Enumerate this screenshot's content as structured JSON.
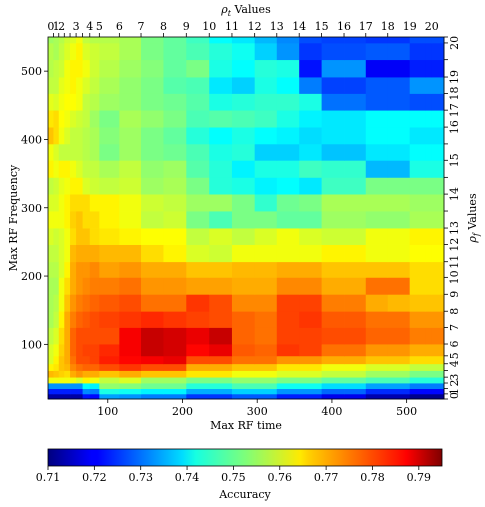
{
  "chart_data": {
    "type": "heatmap",
    "xlabel": "Max RF time",
    "ylabel": "Max RF Frequency",
    "top_label": "ρ_t Values",
    "right_label": "ρ_f Values",
    "colorbar_label": "Accuracy",
    "x_ticks": [
      100,
      200,
      300,
      400,
      500
    ],
    "y_ticks": [
      100,
      200,
      300,
      400,
      500
    ],
    "top_ticks": [
      "0",
      "1",
      "2",
      "3",
      "4",
      "5",
      "6",
      "7",
      "8",
      "9",
      "10",
      "11",
      "12",
      "13",
      "14",
      "15",
      "16",
      "17",
      "18",
      "19",
      "20"
    ],
    "right_ticks": [
      "0",
      "1",
      "2",
      "3",
      "4",
      "5",
      "6",
      "7",
      "8",
      "9",
      "10",
      "11",
      "12",
      "13",
      "14",
      "15",
      "16",
      "17",
      "18",
      "19",
      "20"
    ],
    "colorbar_ticks": [
      "0.71",
      "0.72",
      "0.73",
      "0.74",
      "0.75",
      "0.76",
      "0.77",
      "0.78",
      "0.79"
    ],
    "colorbar_range": [
      0.71,
      0.795
    ],
    "x_range": [
      20,
      550
    ],
    "y_range": [
      20,
      550
    ],
    "x_edges": [
      20,
      27.3,
      34.4,
      41.8,
      49.5,
      57.6,
      66.3,
      75.9,
      88.7,
      115.5,
      144.5,
      174.5,
      205.1,
      235.8,
      266.2,
      296.6,
      326.2,
      356.2,
      386.2,
      416.2,
      445.3,
      474.7,
      504.1,
      525.2,
      533.6,
      550
    ],
    "y_edges": [
      20,
      27.5,
      35.2,
      43.4,
      52,
      61.7,
      71.6,
      83.2,
      100.5,
      124.7,
      148.5,
      173.3,
      198.1,
      221,
      246.1,
      270.3,
      295.2,
      320,
      344.5,
      369.5,
      393.5,
      418.1,
      442.9,
      467.3,
      491.4,
      516.8,
      541.3,
      550
    ],
    "values": [
      [
        0.713,
        0.713,
        0.713,
        0.713,
        0.713,
        0.713,
        0.722,
        0.721,
        0.734,
        0.733,
        0.731,
        0.731,
        0.725,
        0.725,
        0.728,
        0.728,
        0.723,
        0.723,
        0.719,
        0.719,
        0.714,
        0.714,
        0.711,
        0.711,
        0.711
      ],
      [
        0.723,
        0.723,
        0.723,
        0.723,
        0.723,
        0.723,
        0.732,
        0.731,
        0.744,
        0.743,
        0.741,
        0.741,
        0.735,
        0.735,
        0.738,
        0.738,
        0.733,
        0.733,
        0.729,
        0.729,
        0.724,
        0.724,
        0.721,
        0.721,
        0.721
      ],
      [
        0.733,
        0.733,
        0.733,
        0.733,
        0.733,
        0.733,
        0.742,
        0.741,
        0.754,
        0.753,
        0.751,
        0.751,
        0.745,
        0.745,
        0.748,
        0.748,
        0.743,
        0.743,
        0.739,
        0.739,
        0.734,
        0.734,
        0.731,
        0.731,
        0.731
      ],
      [
        0.762,
        0.762,
        0.762,
        0.762,
        0.762,
        0.76,
        0.764,
        0.762,
        0.758,
        0.76,
        0.755,
        0.755,
        0.752,
        0.752,
        0.754,
        0.754,
        0.752,
        0.752,
        0.75,
        0.75,
        0.748,
        0.748,
        0.745,
        0.745,
        0.745
      ],
      [
        0.769,
        0.768,
        0.767,
        0.766,
        0.77,
        0.772,
        0.77,
        0.77,
        0.768,
        0.77,
        0.768,
        0.768,
        0.765,
        0.765,
        0.762,
        0.762,
        0.76,
        0.76,
        0.758,
        0.758,
        0.755,
        0.755,
        0.752,
        0.752,
        0.752
      ],
      [
        0.764,
        0.765,
        0.768,
        0.769,
        0.773,
        0.775,
        0.776,
        0.776,
        0.778,
        0.78,
        0.778,
        0.778,
        0.77,
        0.77,
        0.768,
        0.768,
        0.765,
        0.765,
        0.762,
        0.762,
        0.76,
        0.76,
        0.758,
        0.758,
        0.758
      ],
      [
        0.76,
        0.764,
        0.768,
        0.77,
        0.775,
        0.778,
        0.778,
        0.779,
        0.782,
        0.784,
        0.785,
        0.786,
        0.778,
        0.778,
        0.775,
        0.775,
        0.772,
        0.772,
        0.77,
        0.77,
        0.768,
        0.768,
        0.766,
        0.766,
        0.766
      ],
      [
        0.76,
        0.762,
        0.767,
        0.77,
        0.776,
        0.778,
        0.779,
        0.779,
        0.781,
        0.785,
        0.789,
        0.788,
        0.784,
        0.786,
        0.777,
        0.776,
        0.78,
        0.779,
        0.775,
        0.775,
        0.772,
        0.772,
        0.77,
        0.77,
        0.77
      ],
      [
        0.758,
        0.76,
        0.766,
        0.77,
        0.776,
        0.778,
        0.778,
        0.778,
        0.778,
        0.785,
        0.789,
        0.788,
        0.786,
        0.789,
        0.776,
        0.775,
        0.779,
        0.779,
        0.778,
        0.778,
        0.776,
        0.776,
        0.774,
        0.774,
        0.774
      ],
      [
        0.756,
        0.758,
        0.764,
        0.77,
        0.774,
        0.776,
        0.777,
        0.778,
        0.779,
        0.78,
        0.781,
        0.78,
        0.779,
        0.778,
        0.776,
        0.775,
        0.779,
        0.78,
        0.777,
        0.777,
        0.775,
        0.775,
        0.772,
        0.772,
        0.772
      ],
      [
        0.756,
        0.757,
        0.762,
        0.768,
        0.772,
        0.774,
        0.775,
        0.776,
        0.777,
        0.778,
        0.775,
        0.775,
        0.78,
        0.778,
        0.773,
        0.773,
        0.779,
        0.779,
        0.774,
        0.774,
        0.77,
        0.769,
        0.768,
        0.768,
        0.768
      ],
      [
        0.756,
        0.756,
        0.762,
        0.766,
        0.77,
        0.772,
        0.773,
        0.774,
        0.774,
        0.775,
        0.772,
        0.772,
        0.771,
        0.771,
        0.77,
        0.77,
        0.773,
        0.773,
        0.77,
        0.77,
        0.775,
        0.775,
        0.766,
        0.766,
        0.766
      ],
      [
        0.757,
        0.757,
        0.76,
        0.764,
        0.77,
        0.772,
        0.772,
        0.773,
        0.771,
        0.772,
        0.77,
        0.77,
        0.768,
        0.768,
        0.769,
        0.769,
        0.77,
        0.77,
        0.768,
        0.768,
        0.768,
        0.768,
        0.766,
        0.766,
        0.766
      ],
      [
        0.758,
        0.758,
        0.76,
        0.762,
        0.769,
        0.77,
        0.77,
        0.77,
        0.769,
        0.769,
        0.766,
        0.764,
        0.76,
        0.759,
        0.762,
        0.762,
        0.762,
        0.762,
        0.764,
        0.764,
        0.762,
        0.762,
        0.763,
        0.763,
        0.763
      ],
      [
        0.76,
        0.759,
        0.76,
        0.762,
        0.766,
        0.768,
        0.768,
        0.766,
        0.765,
        0.764,
        0.763,
        0.763,
        0.758,
        0.76,
        0.758,
        0.76,
        0.762,
        0.76,
        0.759,
        0.759,
        0.762,
        0.762,
        0.764,
        0.764,
        0.764
      ],
      [
        0.762,
        0.762,
        0.762,
        0.764,
        0.767,
        0.768,
        0.766,
        0.766,
        0.764,
        0.762,
        0.758,
        0.759,
        0.752,
        0.748,
        0.752,
        0.752,
        0.75,
        0.75,
        0.755,
        0.755,
        0.754,
        0.754,
        0.756,
        0.756,
        0.756
      ],
      [
        0.76,
        0.76,
        0.762,
        0.764,
        0.766,
        0.766,
        0.766,
        0.764,
        0.764,
        0.762,
        0.759,
        0.758,
        0.755,
        0.755,
        0.752,
        0.746,
        0.751,
        0.752,
        0.756,
        0.756,
        0.756,
        0.756,
        0.755,
        0.755,
        0.755
      ],
      [
        0.758,
        0.759,
        0.761,
        0.762,
        0.764,
        0.764,
        0.76,
        0.759,
        0.758,
        0.759,
        0.755,
        0.756,
        0.752,
        0.745,
        0.744,
        0.741,
        0.742,
        0.74,
        0.747,
        0.747,
        0.752,
        0.752,
        0.752,
        0.752,
        0.752
      ],
      [
        0.764,
        0.762,
        0.764,
        0.764,
        0.762,
        0.76,
        0.758,
        0.758,
        0.756,
        0.758,
        0.754,
        0.755,
        0.749,
        0.745,
        0.741,
        0.744,
        0.744,
        0.747,
        0.746,
        0.746,
        0.736,
        0.736,
        0.744,
        0.744,
        0.744
      ],
      [
        0.762,
        0.76,
        0.758,
        0.758,
        0.758,
        0.758,
        0.757,
        0.756,
        0.752,
        0.755,
        0.752,
        0.751,
        0.748,
        0.744,
        0.745,
        0.738,
        0.738,
        0.74,
        0.737,
        0.737,
        0.74,
        0.74,
        0.742,
        0.742,
        0.742
      ],
      [
        0.768,
        0.766,
        0.762,
        0.76,
        0.758,
        0.758,
        0.757,
        0.756,
        0.753,
        0.755,
        0.752,
        0.75,
        0.745,
        0.742,
        0.744,
        0.742,
        0.741,
        0.739,
        0.74,
        0.74,
        0.742,
        0.742,
        0.74,
        0.74,
        0.74
      ],
      [
        0.765,
        0.766,
        0.763,
        0.762,
        0.76,
        0.759,
        0.758,
        0.755,
        0.752,
        0.756,
        0.754,
        0.752,
        0.748,
        0.749,
        0.748,
        0.747,
        0.744,
        0.741,
        0.74,
        0.74,
        0.742,
        0.742,
        0.742,
        0.742,
        0.742
      ],
      [
        0.761,
        0.76,
        0.762,
        0.763,
        0.763,
        0.762,
        0.758,
        0.757,
        0.755,
        0.754,
        0.752,
        0.751,
        0.749,
        0.744,
        0.745,
        0.746,
        0.746,
        0.744,
        0.73,
        0.73,
        0.728,
        0.728,
        0.727,
        0.727,
        0.727
      ],
      [
        0.758,
        0.758,
        0.761,
        0.762,
        0.764,
        0.762,
        0.76,
        0.758,
        0.756,
        0.754,
        0.752,
        0.749,
        0.748,
        0.74,
        0.738,
        0.744,
        0.742,
        0.731,
        0.726,
        0.726,
        0.728,
        0.728,
        0.733,
        0.733,
        0.733
      ],
      [
        0.757,
        0.758,
        0.759,
        0.762,
        0.764,
        0.764,
        0.762,
        0.759,
        0.757,
        0.755,
        0.753,
        0.75,
        0.752,
        0.744,
        0.742,
        0.745,
        0.744,
        0.722,
        0.733,
        0.733,
        0.72,
        0.72,
        0.723,
        0.723,
        0.723
      ],
      [
        0.757,
        0.756,
        0.758,
        0.76,
        0.762,
        0.764,
        0.76,
        0.759,
        0.758,
        0.756,
        0.752,
        0.75,
        0.748,
        0.745,
        0.743,
        0.738,
        0.733,
        0.725,
        0.727,
        0.727,
        0.728,
        0.728,
        0.725,
        0.725,
        0.725
      ],
      [
        0.755,
        0.756,
        0.757,
        0.759,
        0.76,
        0.762,
        0.758,
        0.757,
        0.757,
        0.756,
        0.752,
        0.75,
        0.747,
        0.742,
        0.74,
        0.736,
        0.732,
        0.727,
        0.726,
        0.726,
        0.725,
        0.725,
        0.727,
        0.727,
        0.727
      ]
    ]
  }
}
